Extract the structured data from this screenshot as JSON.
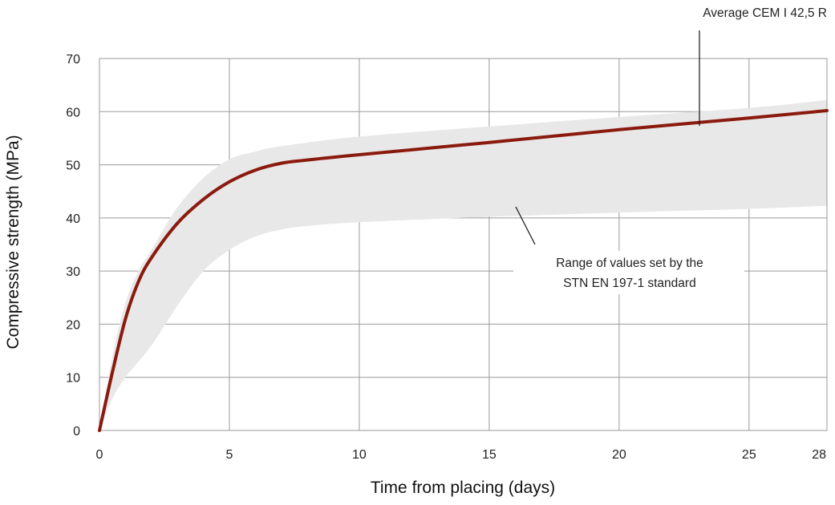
{
  "chart_data": {
    "type": "line",
    "xlabel": "Time from placing (days)",
    "ylabel": "Compressive strength (MPa)",
    "xlim": [
      0,
      28
    ],
    "ylim": [
      0,
      70
    ],
    "x_ticks": [
      0,
      5,
      10,
      15,
      20,
      25,
      28
    ],
    "y_ticks": [
      0,
      10,
      20,
      30,
      40,
      50,
      60,
      70
    ],
    "grid": true,
    "series": [
      {
        "name": "Average CEM I 42,5 R",
        "color": "#8b1a0e",
        "points": [
          [
            0,
            0
          ],
          [
            0.5,
            11
          ],
          [
            1,
            21
          ],
          [
            1.5,
            28
          ],
          [
            2,
            32.5
          ],
          [
            3,
            39
          ],
          [
            4,
            43.5
          ],
          [
            5,
            46.8
          ],
          [
            6,
            49
          ],
          [
            7,
            50.3
          ],
          [
            8,
            50.9
          ],
          [
            10,
            51.9
          ],
          [
            15,
            54.2
          ],
          [
            20,
            56.6
          ],
          [
            25,
            58.8
          ],
          [
            28,
            60.2
          ]
        ]
      }
    ],
    "band": {
      "label": "Range of values set by the STN EN 197-1 standard",
      "color": "#e8e8e8",
      "upper": [
        [
          0,
          0
        ],
        [
          0.5,
          14
        ],
        [
          1,
          24
        ],
        [
          1.5,
          30
        ],
        [
          2,
          34
        ],
        [
          3,
          42
        ],
        [
          4,
          47.5
        ],
        [
          5,
          51
        ],
        [
          6,
          52.5
        ],
        [
          7,
          53.5
        ],
        [
          10,
          55.3
        ],
        [
          15,
          57.2
        ],
        [
          20,
          59
        ],
        [
          25,
          60.7
        ],
        [
          28,
          62.2
        ]
      ],
      "lower": [
        [
          0,
          0
        ],
        [
          0.5,
          6
        ],
        [
          1,
          10
        ],
        [
          2,
          16
        ],
        [
          3,
          23.5
        ],
        [
          4,
          30
        ],
        [
          5,
          34
        ],
        [
          6,
          36.5
        ],
        [
          7,
          37.8
        ],
        [
          8,
          38.5
        ],
        [
          10,
          39.2
        ],
        [
          15,
          40.2
        ],
        [
          20,
          41
        ],
        [
          25,
          41.7
        ],
        [
          28,
          42.3
        ]
      ]
    },
    "annotations": {
      "series_label": "Average CEM I 42,5 R",
      "band_label_line1": "Range of values set by the",
      "band_label_line2": "STN EN 197-1 standard"
    }
  }
}
